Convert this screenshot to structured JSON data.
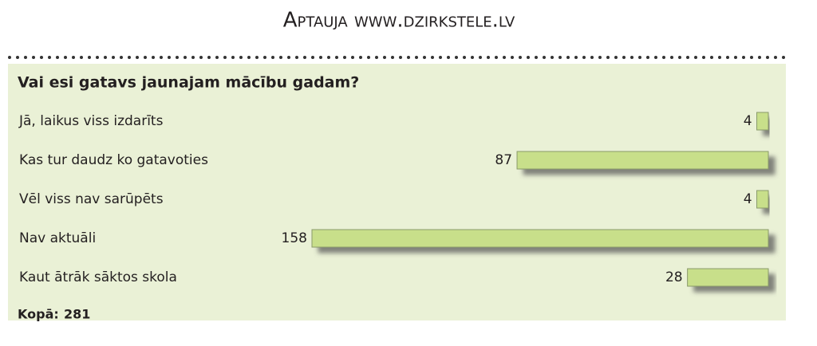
{
  "chart_data": {
    "type": "hbar",
    "title": "Aptauja www.dzirkstele.lv",
    "subtitle": "Vai esi gatavs jaunajam mācību gadam?",
    "categories": [
      "Jā, laikus viss izdarīts",
      "Kas tur daudz ko gatavoties",
      "Vēl viss nav sarūpēts",
      "Nav aktuāli",
      "Kaut ātrāk sāktos skola"
    ],
    "values": [
      4,
      87,
      4,
      158,
      28
    ],
    "color": "#c8df8a",
    "xlim": [
      0,
      160
    ],
    "total": {
      "label": "Kopā:",
      "value": 281
    }
  }
}
